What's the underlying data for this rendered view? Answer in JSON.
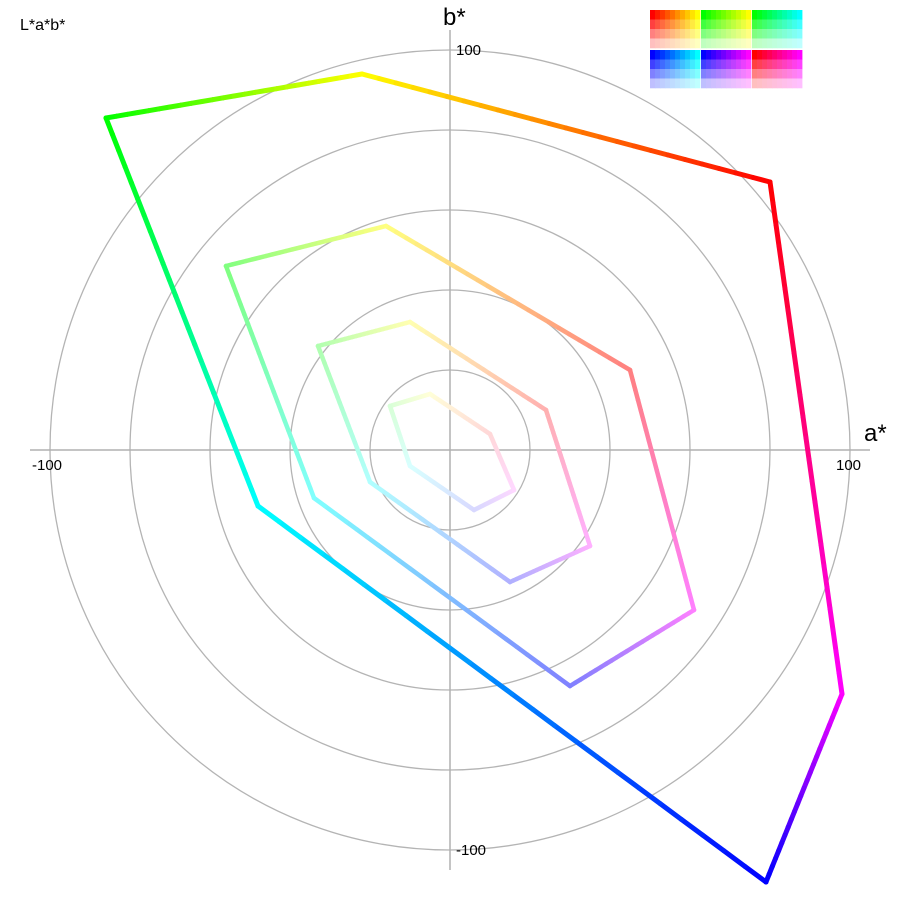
{
  "corner_label": "L*a*b*",
  "axes": {
    "a_label": "a*",
    "b_label": "b*",
    "tick_a_neg": "-100",
    "tick_a_pos": "100",
    "tick_b_pos": "100",
    "tick_b_neg": "-100"
  },
  "chart_data": {
    "type": "scatter",
    "x_label": "a*",
    "y_label": "b*",
    "xlim": [
      -105,
      105
    ],
    "ylim": [
      -105,
      105
    ],
    "grid": "concentric circles",
    "grid_radii": [
      20,
      40,
      60,
      80,
      100
    ],
    "series": [
      {
        "level": "full saturation",
        "points": [
          {
            "a": 80,
            "b": 67,
            "color": "#ff0000"
          },
          {
            "a": 98,
            "b": -61,
            "color": "#ff00ff"
          },
          {
            "a": 79,
            "b": -108,
            "color": "#0000ff"
          },
          {
            "a": -48,
            "b": -14,
            "color": "#00ffff"
          },
          {
            "a": -86,
            "b": 83,
            "color": "#00ff00"
          },
          {
            "a": -22,
            "b": 94,
            "color": "#ffff00"
          }
        ]
      },
      {
        "level": "75% saturation",
        "points": [
          {
            "a": 45,
            "b": 20,
            "color": "#ff8080"
          },
          {
            "a": 61,
            "b": -40,
            "color": "#ff80ff"
          },
          {
            "a": 30,
            "b": -59,
            "color": "#8080ff"
          },
          {
            "a": -34,
            "b": -12,
            "color": "#80ffff"
          },
          {
            "a": -56,
            "b": 46,
            "color": "#80ff80"
          },
          {
            "a": -16,
            "b": 56,
            "color": "#ffff80"
          }
        ]
      },
      {
        "level": "50% saturation",
        "points": [
          {
            "a": 24,
            "b": 10,
            "color": "#ffb0b0"
          },
          {
            "a": 35,
            "b": -24,
            "color": "#ffb0ff"
          },
          {
            "a": 15,
            "b": -33,
            "color": "#b0b0ff"
          },
          {
            "a": -20,
            "b": -8,
            "color": "#b0ffff"
          },
          {
            "a": -33,
            "b": 26,
            "color": "#b0ffb0"
          },
          {
            "a": -10,
            "b": 32,
            "color": "#ffffb0"
          }
        ]
      },
      {
        "level": "25% saturation",
        "points": [
          {
            "a": 10,
            "b": 4,
            "color": "#ffd8d8"
          },
          {
            "a": 16,
            "b": -10,
            "color": "#ffd8ff"
          },
          {
            "a": 6,
            "b": -15,
            "color": "#d8d8ff"
          },
          {
            "a": -10,
            "b": -4,
            "color": "#d8ffff"
          },
          {
            "a": -15,
            "b": 11,
            "color": "#d8ffd8"
          },
          {
            "a": -5,
            "b": 14,
            "color": "#ffffd8"
          }
        ]
      }
    ]
  },
  "swatches": {
    "groups": [
      {
        "hues": [
          "#ff0000",
          "#ffff00"
        ]
      },
      {
        "hues": [
          "#00ff00",
          "#ffff00"
        ]
      },
      {
        "hues": [
          "#00ff00",
          "#00ffff"
        ]
      },
      {
        "hues": [
          "#0000ff",
          "#00ffff"
        ]
      },
      {
        "hues": [
          "#0000ff",
          "#ff00ff"
        ]
      },
      {
        "hues": [
          "#ff0000",
          "#ff00ff"
        ]
      }
    ],
    "tints": [
      0,
      0.25,
      0.5,
      0.75
    ]
  }
}
